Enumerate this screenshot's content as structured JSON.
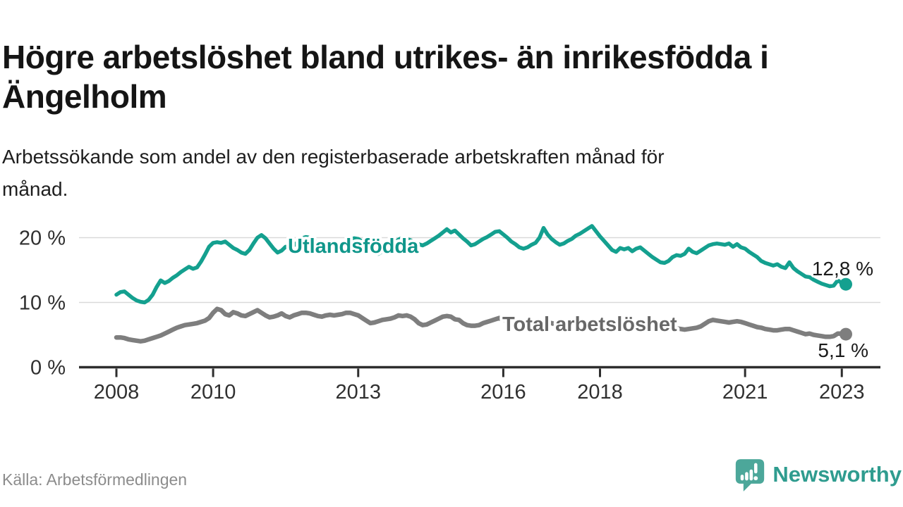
{
  "title": {
    "full": "Högre arbetslöshet bland utrikes- än inrikesfödda i Ängelholm",
    "line1": "Högre arbetslöshet bland utrikes- än inrikesfödda i",
    "line2": "Ängelholm"
  },
  "subtitle": {
    "full": "Arbetssökande som andel av den registerbaserade arbetskraften månad för månad.",
    "line1": "Arbetssökande som andel av den registerbaserade arbetskraften månad för",
    "line2": "månad."
  },
  "footer": {
    "source": "Källa: Arbetsförmedlingen"
  },
  "brand": {
    "name": "Newsworthy",
    "icon": "bar-chart-speech-bubble",
    "text_color": "#2f9c8f",
    "bubble_color": "#4ca79a"
  },
  "colors": {
    "foreign_line": "#14a08f",
    "foreign_label": "#0f968a",
    "total_line": "#7e7e7e",
    "total_label": "#686868",
    "grid": "#d9d9d9",
    "axis": "#2e2e2e",
    "value_text": "#1a1a1a"
  },
  "chart_data": {
    "type": "line",
    "title": "Högre arbetslöshet bland utrikes- än inrikesfödda i Ängelholm",
    "xlabel": "",
    "ylabel": "Arbetssökande som andel av arbetskraften (%)",
    "x_start": "2008-01",
    "x_end": "2023-02",
    "x_interval": "monthly",
    "x_tick_years": [
      2008,
      2010,
      2013,
      2016,
      2018,
      2021,
      2023
    ],
    "x_tick_labels": [
      "2008",
      "2010",
      "2013",
      "2016",
      "2018",
      "2021",
      "2023"
    ],
    "y_ticks": [
      0,
      10,
      20
    ],
    "y_tick_labels": [
      "0 %",
      "10 %",
      "20 %"
    ],
    "ylim": [
      0,
      22.5
    ],
    "grid": "horizontal-only",
    "legend_position": "inline-labels",
    "series": [
      {
        "name": "Utlandsfödda",
        "color": "#14a08f",
        "end_value": 12.8,
        "end_label": "12,8 %",
        "values": [
          11.2,
          11.6,
          11.7,
          11.2,
          10.7,
          10.3,
          10.1,
          10.0,
          10.4,
          11.2,
          12.4,
          13.4,
          13.0,
          13.3,
          13.8,
          14.2,
          14.7,
          15.1,
          15.5,
          15.2,
          15.4,
          16.3,
          17.4,
          18.6,
          19.2,
          19.3,
          19.2,
          19.4,
          18.9,
          18.4,
          18.1,
          17.7,
          17.5,
          18.1,
          19.1,
          20.0,
          20.4,
          19.9,
          19.1,
          18.3,
          17.7,
          18.0,
          18.6,
          18.4,
          18.8,
          19.3,
          19.9,
          20.1,
          20.0,
          19.6,
          19.1,
          18.6,
          18.1,
          17.8,
          18.2,
          18.6,
          19.0,
          19.3,
          19.7,
          19.9,
          19.8,
          19.4,
          18.9,
          18.3,
          17.8,
          17.5,
          17.9,
          18.4,
          18.9,
          19.3,
          19.7,
          20.0,
          19.8,
          19.6,
          19.3,
          19.0,
          18.8,
          19.1,
          19.5,
          19.9,
          20.3,
          20.8,
          21.3,
          20.8,
          21.1,
          20.5,
          19.9,
          19.4,
          18.8,
          19.0,
          19.4,
          19.8,
          20.1,
          20.5,
          20.9,
          21.0,
          20.5,
          20.0,
          19.4,
          19.0,
          18.5,
          18.3,
          18.5,
          18.9,
          19.2,
          20.0,
          21.5,
          20.5,
          19.8,
          19.3,
          18.9,
          19.1,
          19.5,
          19.8,
          20.3,
          20.6,
          21.0,
          21.4,
          21.8,
          21.0,
          20.2,
          19.5,
          18.8,
          18.1,
          17.8,
          18.4,
          18.2,
          18.4,
          17.9,
          18.3,
          18.5,
          18.0,
          17.5,
          17.0,
          16.6,
          16.2,
          16.1,
          16.4,
          17.0,
          17.3,
          17.2,
          17.5,
          18.3,
          17.8,
          17.6,
          18.0,
          18.4,
          18.8,
          19.0,
          19.1,
          19.0,
          18.9,
          19.1,
          18.6,
          19.0,
          18.5,
          18.3,
          17.8,
          17.4,
          17.0,
          16.4,
          16.1,
          15.9,
          15.7,
          15.9,
          15.5,
          15.3,
          16.2,
          15.3,
          14.8,
          14.4,
          14.0,
          13.9,
          13.5,
          13.2,
          12.9,
          12.7,
          12.5,
          12.6,
          13.4,
          13.0,
          12.8
        ]
      },
      {
        "name": "Total arbetslöshet",
        "color": "#7e7e7e",
        "end_value": 5.1,
        "end_label": "5,1 %",
        "values": [
          4.6,
          4.6,
          4.5,
          4.3,
          4.2,
          4.1,
          4.0,
          4.1,
          4.3,
          4.5,
          4.7,
          4.9,
          5.2,
          5.5,
          5.8,
          6.1,
          6.3,
          6.5,
          6.6,
          6.7,
          6.8,
          7.0,
          7.2,
          7.6,
          8.4,
          9.0,
          8.8,
          8.2,
          8.0,
          8.5,
          8.3,
          8.0,
          7.9,
          8.2,
          8.5,
          8.8,
          8.4,
          8.0,
          7.7,
          7.8,
          8.0,
          8.3,
          7.9,
          7.7,
          8.0,
          8.2,
          8.4,
          8.4,
          8.3,
          8.1,
          7.9,
          7.8,
          8.0,
          8.1,
          8.0,
          8.1,
          8.2,
          8.4,
          8.4,
          8.2,
          8.0,
          7.6,
          7.2,
          6.8,
          6.9,
          7.1,
          7.3,
          7.4,
          7.5,
          7.7,
          8.0,
          7.9,
          8.0,
          7.8,
          7.4,
          6.8,
          6.5,
          6.6,
          6.9,
          7.2,
          7.5,
          7.8,
          7.9,
          7.8,
          7.4,
          7.3,
          6.8,
          6.5,
          6.4,
          6.4,
          6.5,
          6.8,
          7.0,
          7.2,
          7.4,
          7.6,
          7.4,
          7.1,
          6.8,
          6.6,
          6.5,
          6.4,
          6.5,
          6.6,
          6.6,
          6.7,
          6.8,
          6.9,
          6.8,
          6.6,
          6.4,
          6.3,
          6.2,
          6.3,
          6.4,
          6.5,
          6.4,
          6.5,
          6.6,
          6.7,
          6.6,
          6.4,
          6.2,
          6.0,
          5.9,
          5.9,
          6.0,
          6.1,
          6.0,
          5.9,
          6.0,
          6.1,
          6.0,
          5.9,
          5.8,
          5.7,
          5.7,
          5.8,
          5.9,
          6.0,
          5.9,
          5.8,
          5.9,
          6.0,
          6.1,
          6.3,
          6.7,
          7.1,
          7.3,
          7.2,
          7.1,
          7.0,
          6.9,
          7.0,
          7.1,
          7.0,
          6.8,
          6.6,
          6.4,
          6.2,
          6.1,
          5.9,
          5.8,
          5.7,
          5.7,
          5.8,
          5.9,
          5.9,
          5.7,
          5.5,
          5.3,
          5.1,
          5.2,
          5.0,
          4.9,
          4.8,
          4.7,
          4.7,
          4.8,
          5.2,
          5.2,
          5.1
        ]
      }
    ]
  }
}
